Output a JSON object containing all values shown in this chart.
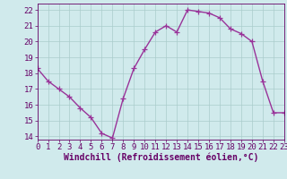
{
  "x": [
    0,
    1,
    2,
    3,
    4,
    5,
    6,
    7,
    8,
    9,
    10,
    11,
    12,
    13,
    14,
    15,
    16,
    17,
    18,
    19,
    20,
    21,
    22,
    23
  ],
  "y": [
    18.3,
    17.5,
    17.0,
    16.5,
    15.8,
    15.2,
    14.2,
    13.9,
    16.4,
    18.3,
    19.5,
    20.6,
    21.0,
    20.6,
    22.0,
    21.9,
    21.8,
    21.5,
    20.8,
    20.5,
    20.0,
    17.5,
    15.5,
    15.5
  ],
  "line_color": "#993399",
  "marker": "+",
  "marker_size": 4,
  "xlabel": "Windchill (Refroidissement éolien,°C)",
  "xlabel_fontsize": 7,
  "xlim": [
    0,
    23
  ],
  "ylim": [
    13.8,
    22.4
  ],
  "yticks": [
    14,
    15,
    16,
    17,
    18,
    19,
    20,
    21,
    22
  ],
  "xticks": [
    0,
    1,
    2,
    3,
    4,
    5,
    6,
    7,
    8,
    9,
    10,
    11,
    12,
    13,
    14,
    15,
    16,
    17,
    18,
    19,
    20,
    21,
    22,
    23
  ],
  "grid_color": "#aacccc",
  "bg_color": "#d0eaec",
  "tick_fontsize": 6.5,
  "linewidth": 1.0,
  "text_color": "#660066"
}
